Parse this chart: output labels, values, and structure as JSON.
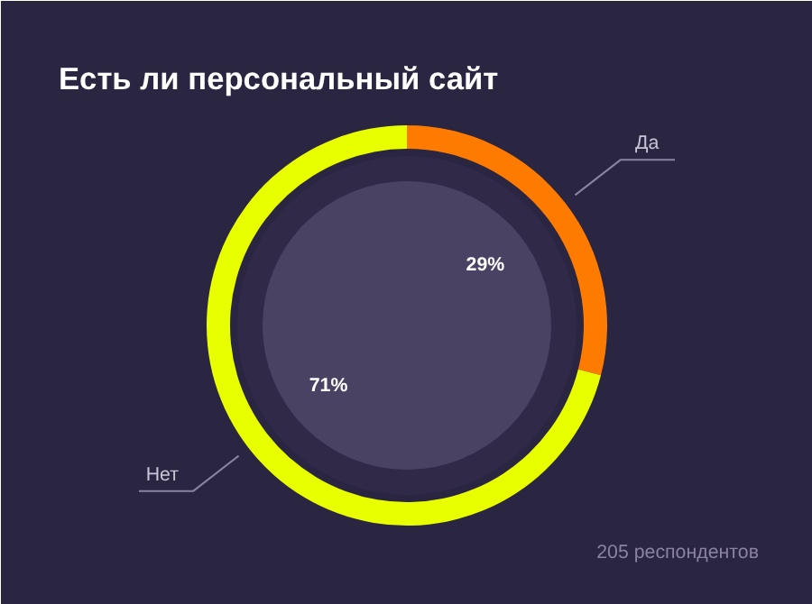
{
  "chart_data": {
    "type": "donut",
    "title": "Есть ли персональный сайт",
    "categories": [
      "Да",
      "Нет"
    ],
    "values": [
      29,
      71
    ],
    "colors": [
      "#ff7b00",
      "#e8ff00"
    ],
    "value_labels": [
      "29%",
      "71%"
    ],
    "annotations": [
      "205 респондентов"
    ]
  }
}
